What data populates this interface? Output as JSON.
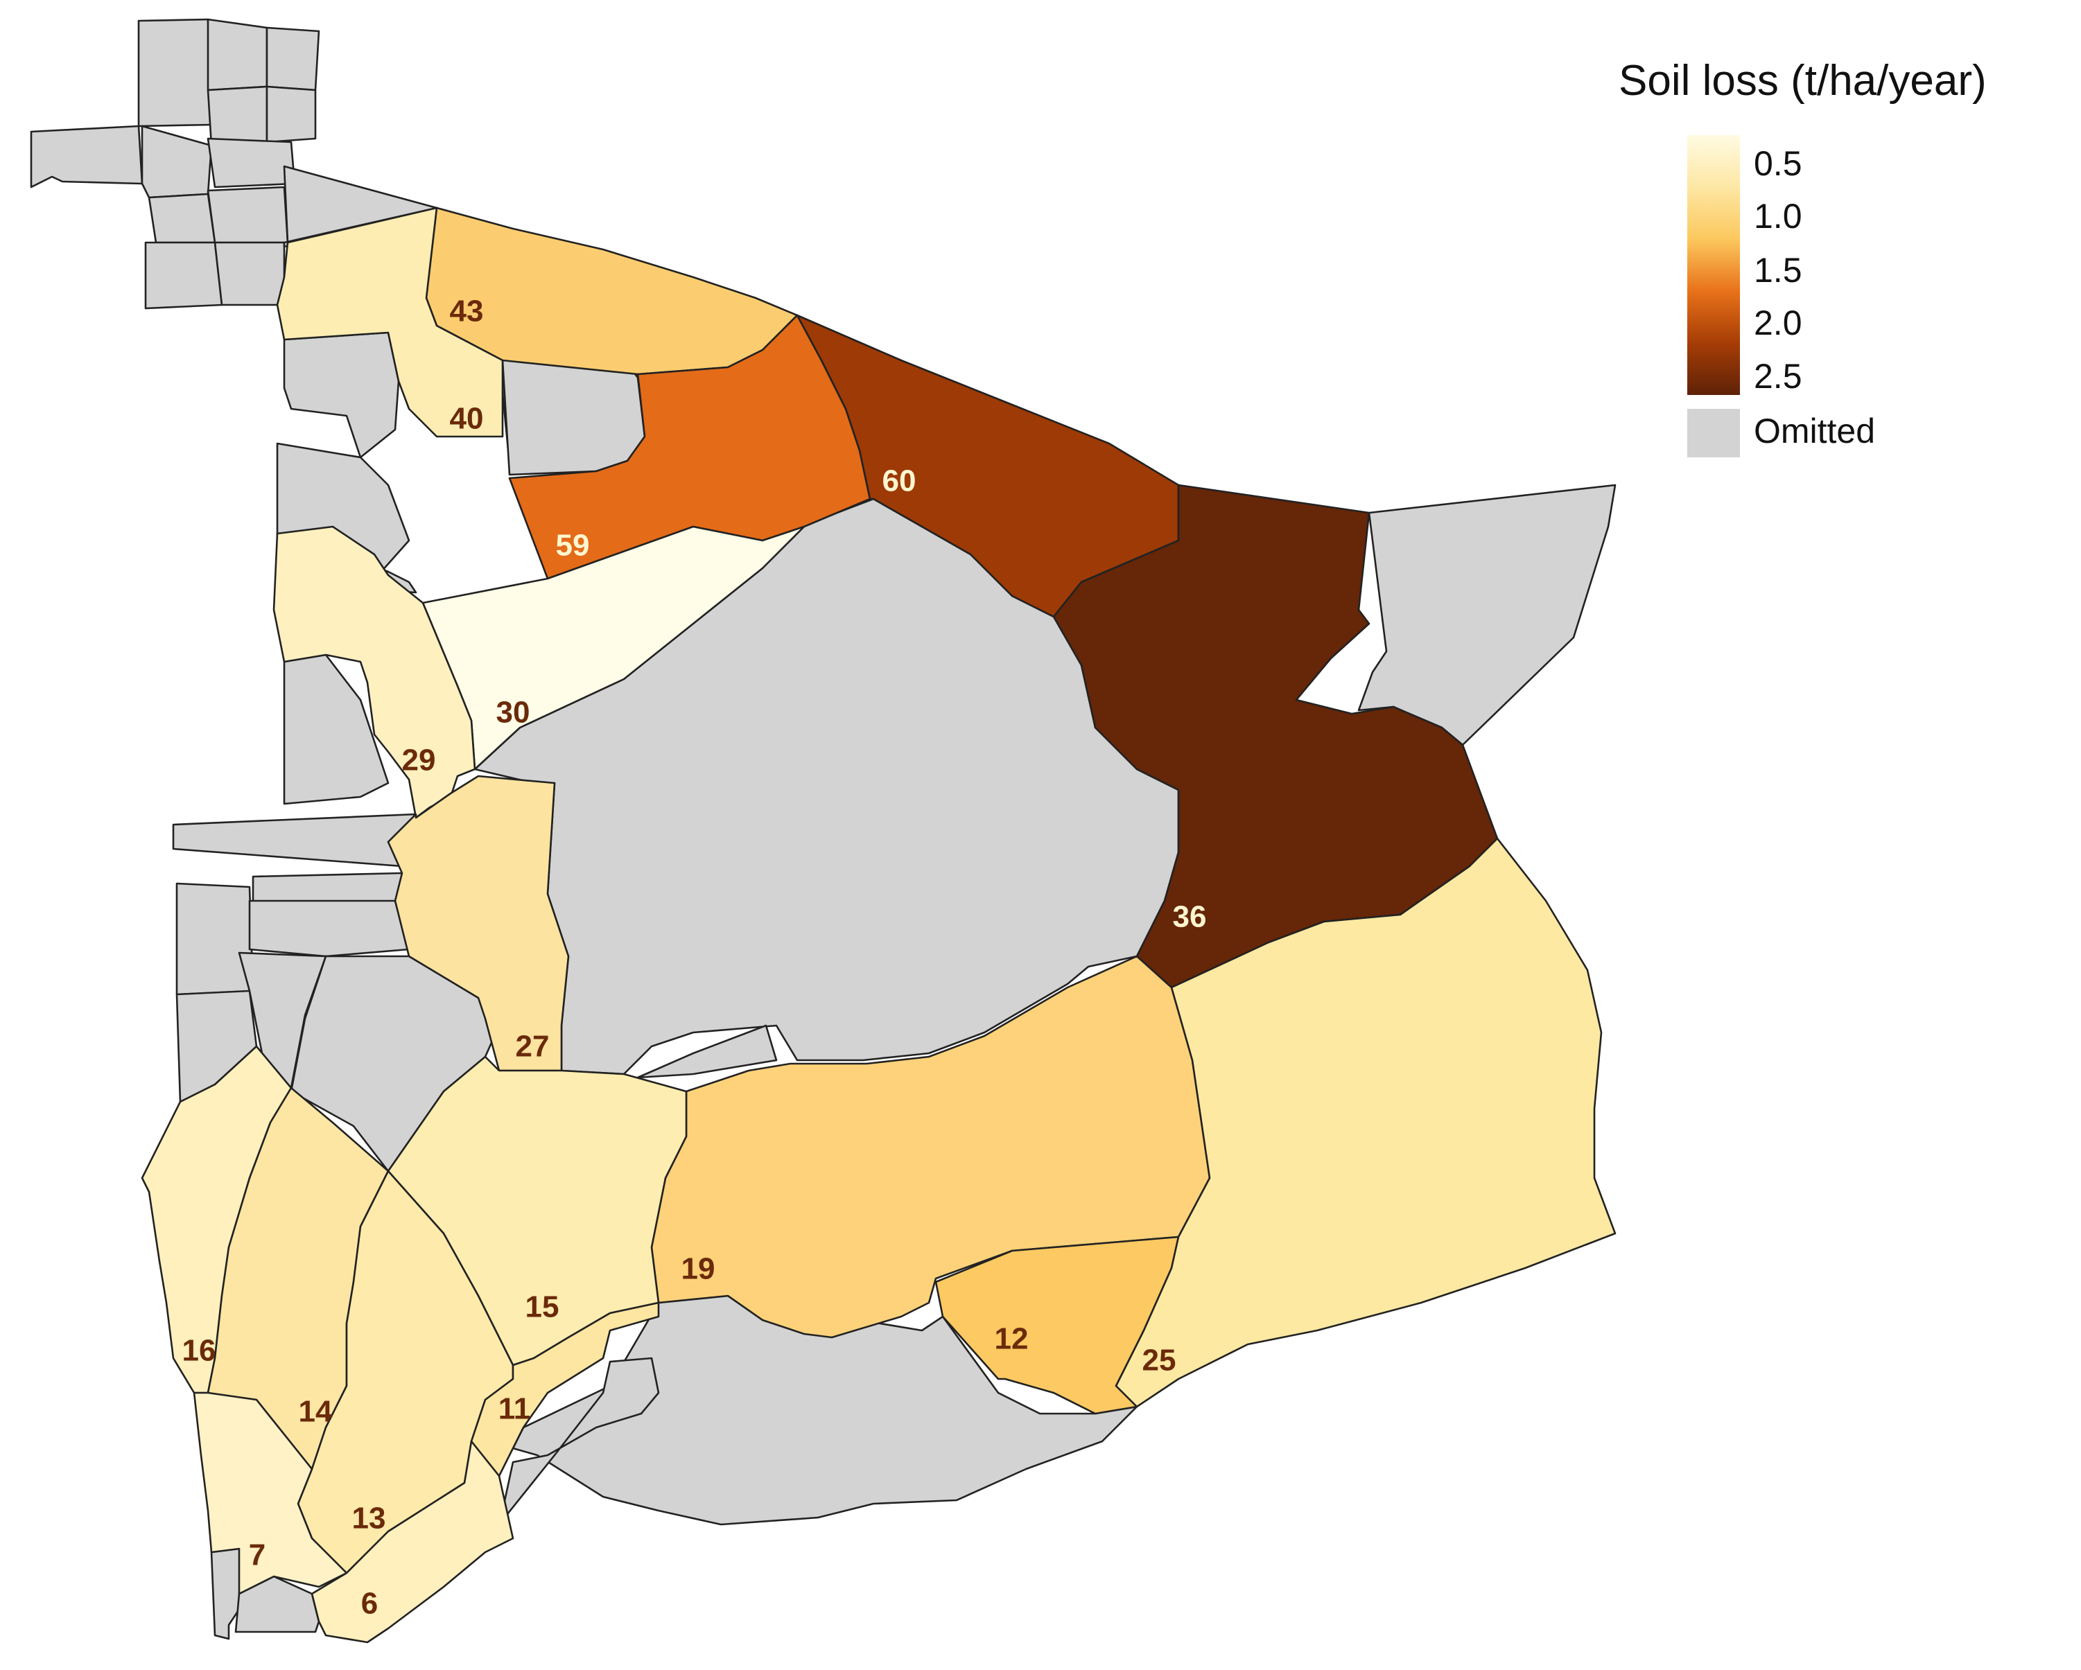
{
  "legend": {
    "title": "Soil loss (t/ha/year)",
    "ticks": [
      "0.5",
      "1.0",
      "1.5",
      "2.0",
      "2.5"
    ],
    "omitted_label": "Omitted",
    "gradient_stops": [
      "#fffbe2",
      "#fde7a4",
      "#fcc85e",
      "#e8721a",
      "#a63d06",
      "#5e2207"
    ],
    "omitted_color": "#d3d3d3"
  },
  "label_colors": {
    "dark": "#6b2a0a",
    "light": "#fff6d0"
  },
  "zones": [
    {
      "id": "43",
      "color": "#fccd70",
      "label_tone": "dark"
    },
    {
      "id": "40",
      "color": "#fdedb3",
      "label_tone": "dark"
    },
    {
      "id": "59",
      "color": "#e46b18",
      "label_tone": "light"
    },
    {
      "id": "60",
      "color": "#9e3a05",
      "label_tone": "light"
    },
    {
      "id": "36",
      "color": "#662608",
      "label_tone": "light"
    },
    {
      "id": "30",
      "color": "#fffde8",
      "label_tone": "dark"
    },
    {
      "id": "29",
      "color": "#fff0c0",
      "label_tone": "dark"
    },
    {
      "id": "27",
      "color": "#fde3a0",
      "label_tone": "dark"
    },
    {
      "id": "19",
      "color": "#fdd27a",
      "label_tone": "dark"
    },
    {
      "id": "15",
      "color": "#feedb0",
      "label_tone": "dark"
    },
    {
      "id": "12",
      "color": "#fcc962",
      "label_tone": "dark"
    },
    {
      "id": "25",
      "color": "#fde9a2",
      "label_tone": "dark"
    },
    {
      "id": "16",
      "color": "#fff0bd",
      "label_tone": "dark"
    },
    {
      "id": "14",
      "color": "#fde6a4",
      "label_tone": "dark"
    },
    {
      "id": "13",
      "color": "#feeaaa",
      "label_tone": "dark"
    },
    {
      "id": "11",
      "color": "#fde6a2",
      "label_tone": "dark"
    },
    {
      "id": "7",
      "color": "#fff2c6",
      "label_tone": "dark"
    },
    {
      "id": "6",
      "color": "#fff0be",
      "label_tone": "dark"
    }
  ]
}
